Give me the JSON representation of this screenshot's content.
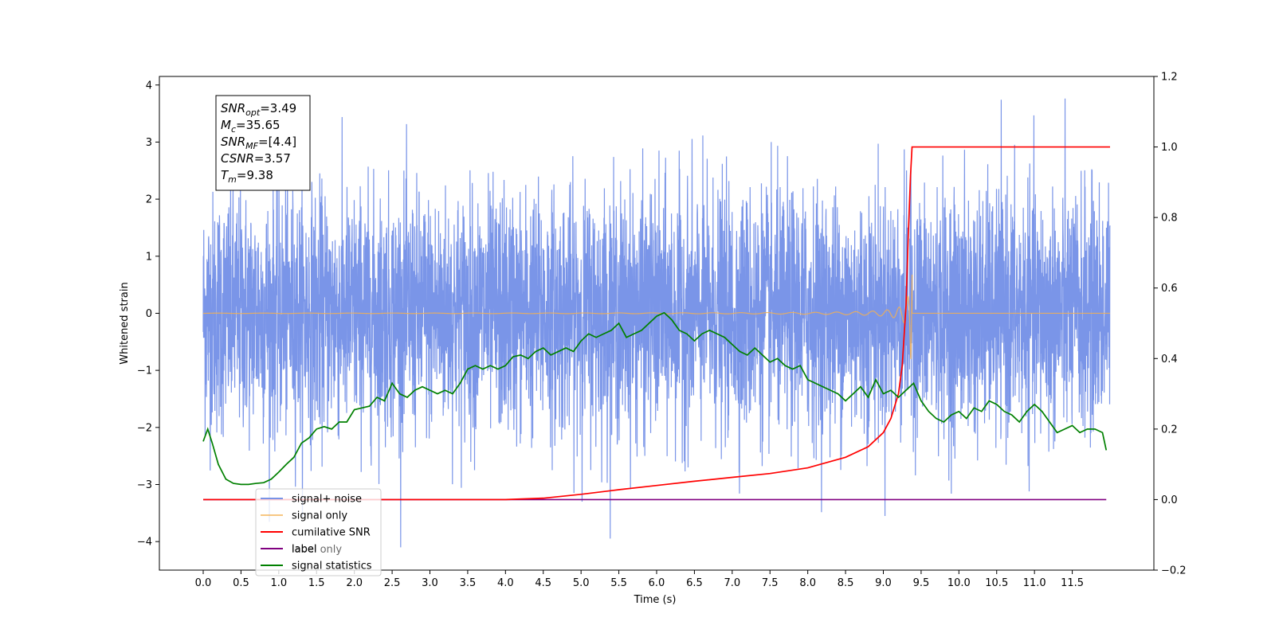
{
  "chart_data": {
    "type": "line",
    "xlabel": "Time (s)",
    "ylabel": "Whitened strain",
    "xlim": [
      -0.58,
      12.58
    ],
    "ylim_left": [
      -4.5,
      4.15
    ],
    "ylim_right": [
      -0.2,
      1.2
    ],
    "x_ticks": [
      "0.0",
      "0.5",
      "1.0",
      "1.5",
      "2.0",
      "2.5",
      "3.0",
      "3.5",
      "4.0",
      "4.5",
      "5.0",
      "5.5",
      "6.0",
      "6.5",
      "7.0",
      "7.5",
      "8.0",
      "8.5",
      "9.0",
      "9.5",
      "10.0",
      "10.5",
      "11.0",
      "11.5"
    ],
    "y_ticks_left": [
      "4",
      "3",
      "2",
      "1",
      "0",
      "−1",
      "−2",
      "−3",
      "−4"
    ],
    "y_ticks_right": [
      "1.2",
      "1.0",
      "0.8",
      "0.6",
      "0.4",
      "0.2",
      "0.0",
      "−0.2"
    ],
    "grid": false,
    "legend_position": "lower-left",
    "colors": {
      "noise": "#6b8ae6",
      "signal": "#f5b050",
      "csnr": "#ff0000",
      "label": "#800080",
      "stats": "#008000"
    },
    "series": [
      {
        "name": "signal+ noise",
        "axis": "left",
        "description_stats": {
          "mean": 0.0,
          "std": 1.0,
          "min": -4.1,
          "max": 3.78,
          "x_start": 0.0,
          "x_end": 12.0
        }
      },
      {
        "name": "signal only",
        "axis": "left",
        "peak_time": 9.38,
        "peak_amplitude": 0.85
      },
      {
        "name": "cumilative SNR",
        "axis": "right",
        "x": [
          0.0,
          4.0,
          4.5,
          5.0,
          5.5,
          6.0,
          6.5,
          7.0,
          7.5,
          8.0,
          8.5,
          8.8,
          9.0,
          9.1,
          9.2,
          9.25,
          9.3,
          9.33,
          9.36,
          9.38,
          10.0,
          11.0,
          12.0
        ],
        "y": [
          0.0,
          0.0,
          0.004,
          0.015,
          0.028,
          0.04,
          0.052,
          0.063,
          0.074,
          0.09,
          0.12,
          0.15,
          0.19,
          0.23,
          0.3,
          0.38,
          0.55,
          0.75,
          0.92,
          1.0,
          1.0,
          1.0,
          1.0
        ]
      },
      {
        "name": "label",
        "axis": "right",
        "x": [
          0.0,
          11.95
        ],
        "y": [
          0.0,
          0.0
        ]
      },
      {
        "name": "signal statistics",
        "axis": "right",
        "x": [
          0.0,
          0.06,
          0.12,
          0.2,
          0.3,
          0.4,
          0.5,
          0.6,
          0.7,
          0.8,
          0.9,
          1.0,
          1.1,
          1.2,
          1.3,
          1.4,
          1.5,
          1.6,
          1.7,
          1.8,
          1.9,
          2.0,
          2.1,
          2.2,
          2.3,
          2.4,
          2.5,
          2.6,
          2.7,
          2.8,
          2.9,
          3.0,
          3.1,
          3.2,
          3.3,
          3.4,
          3.5,
          3.6,
          3.7,
          3.8,
          3.9,
          4.0,
          4.1,
          4.2,
          4.3,
          4.4,
          4.5,
          4.6,
          4.7,
          4.8,
          4.9,
          5.0,
          5.1,
          5.2,
          5.3,
          5.4,
          5.5,
          5.6,
          5.7,
          5.8,
          5.9,
          6.0,
          6.1,
          6.15,
          6.2,
          6.3,
          6.4,
          6.5,
          6.6,
          6.7,
          6.8,
          6.9,
          7.0,
          7.1,
          7.2,
          7.3,
          7.4,
          7.5,
          7.6,
          7.7,
          7.8,
          7.9,
          8.0,
          8.1,
          8.2,
          8.3,
          8.4,
          8.5,
          8.6,
          8.7,
          8.8,
          8.9,
          9.0,
          9.1,
          9.2,
          9.3,
          9.4,
          9.5,
          9.6,
          9.7,
          9.8,
          9.9,
          10.0,
          10.1,
          10.2,
          10.3,
          10.4,
          10.5,
          10.6,
          10.7,
          10.8,
          10.9,
          11.0,
          11.1,
          11.2,
          11.3,
          11.4,
          11.5,
          11.6,
          11.7,
          11.8,
          11.9,
          11.95
        ],
        "y": [
          0.165,
          0.2,
          0.16,
          0.1,
          0.058,
          0.046,
          0.043,
          0.043,
          0.046,
          0.048,
          0.058,
          0.078,
          0.1,
          0.12,
          0.16,
          0.175,
          0.2,
          0.207,
          0.2,
          0.22,
          0.22,
          0.255,
          0.26,
          0.265,
          0.29,
          0.28,
          0.33,
          0.3,
          0.29,
          0.31,
          0.32,
          0.31,
          0.3,
          0.31,
          0.3,
          0.33,
          0.37,
          0.38,
          0.37,
          0.38,
          0.37,
          0.38,
          0.405,
          0.41,
          0.4,
          0.42,
          0.43,
          0.41,
          0.42,
          0.43,
          0.42,
          0.45,
          0.47,
          0.46,
          0.47,
          0.48,
          0.5,
          0.46,
          0.47,
          0.48,
          0.5,
          0.52,
          0.53,
          0.52,
          0.51,
          0.48,
          0.47,
          0.45,
          0.47,
          0.48,
          0.47,
          0.46,
          0.44,
          0.42,
          0.41,
          0.43,
          0.41,
          0.39,
          0.4,
          0.38,
          0.37,
          0.38,
          0.34,
          0.33,
          0.32,
          0.31,
          0.3,
          0.28,
          0.3,
          0.32,
          0.29,
          0.34,
          0.3,
          0.31,
          0.29,
          0.31,
          0.33,
          0.28,
          0.25,
          0.23,
          0.22,
          0.24,
          0.25,
          0.23,
          0.26,
          0.25,
          0.28,
          0.27,
          0.25,
          0.24,
          0.22,
          0.25,
          0.27,
          0.25,
          0.22,
          0.19,
          0.2,
          0.21,
          0.19,
          0.2,
          0.2,
          0.19,
          0.14
        ]
      }
    ],
    "legend": [
      "signal+ noise",
      "signal only",
      "cumilative SNR",
      "label",
      "signal statistics"
    ],
    "legend_overlap_text": [
      "label only"
    ],
    "stats_box": {
      "lines": [
        {
          "base": "SNR",
          "sub": "opt",
          "rest": "=3.49"
        },
        {
          "base": "M",
          "sub": "c",
          "rest": "=35.65"
        },
        {
          "base": "SNR",
          "sub": "MF",
          "rest": "=[4.4]"
        },
        {
          "base": "CSNR",
          "sub": "",
          "rest": "=3.57"
        },
        {
          "base": "T",
          "sub": "m",
          "rest": "=9.38"
        }
      ]
    }
  }
}
